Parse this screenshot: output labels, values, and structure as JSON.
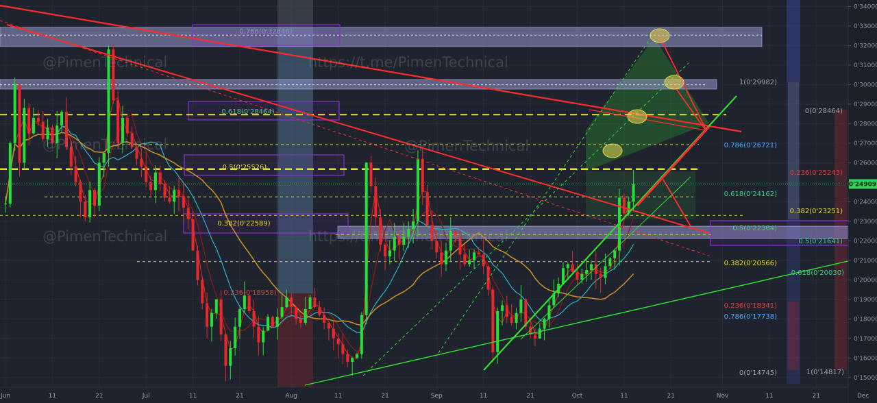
{
  "watermarks": [
    "@PimenTechnical",
    "https://t.me/PimenTechnical"
  ],
  "colors": {
    "background": "#1f232d",
    "up": "#26e03a",
    "down": "#e8282c",
    "trend_red": "#ff2d2d",
    "trend_green": "#2fe02f",
    "dashed_yellow": "#e8e030",
    "band": "#8b8fbc",
    "purple": "#8b30d6",
    "ma_orange": "#c88a2a",
    "ma_cyan": "#2bb5c8",
    "current": "#2fd35a"
  },
  "chart_data": {
    "type": "candlestick",
    "y_axis": {
      "ticks": [
        "0'34000",
        "0'33000",
        "0'32000",
        "0'31000",
        "0'30000",
        "0'29000",
        "0'28000",
        "0'27000",
        "0'26000",
        "0'25000",
        "0'24000",
        "0'23000",
        "0'22000",
        "0'21000",
        "0'20000",
        "0'19000",
        "0'18000",
        "0'17000",
        "0'16000",
        "0'15000"
      ],
      "range": [
        0.145,
        0.3412
      ]
    },
    "x_axis": {
      "ticks": [
        "Jun",
        "11",
        "21",
        "Jul",
        "11",
        "21",
        "Aug",
        "11",
        "21",
        "Sep",
        "11",
        "21",
        "Oct",
        "11",
        "21",
        "Nov",
        "11",
        "21",
        "Dec"
      ],
      "day_offsets": [
        0,
        10,
        20,
        30,
        40,
        50,
        61,
        71,
        81,
        92,
        102,
        112,
        122,
        132,
        142,
        153,
        163,
        173,
        183
      ]
    },
    "current_price": {
      "label": "0'24909",
      "value": 0.24909
    },
    "fib_labels": [
      {
        "text": "0.786(0'32646)",
        "price": 0.32646,
        "color": "#8c8fd0"
      },
      {
        "text": "0.618(0'28464)",
        "price": 0.28464,
        "color": "#40d080"
      },
      {
        "text": "0.5(0'25526)",
        "price": 0.25526,
        "color": "#e8d640"
      },
      {
        "text": "0.382(0'22589)",
        "price": 0.22589,
        "color": "#e8d640"
      },
      {
        "text": "0.236(0'18958)",
        "price": 0.18958,
        "color": "#e04040"
      },
      {
        "text": "1(0'29982)",
        "price": 0.29982,
        "color": "#9aa0ab"
      },
      {
        "text": "0.786(0'26721)",
        "price": 0.26721,
        "color": "#50a8ff"
      },
      {
        "text": "0.618(0'24162)",
        "price": 0.24162,
        "color": "#40d080"
      },
      {
        "text": "0.5(0'22364)",
        "price": 0.22364,
        "color": "#40d080"
      },
      {
        "text": "0.382(0'20566)",
        "price": 0.20566,
        "color": "#e8d640"
      },
      {
        "text": "0.236(0'18341)",
        "price": 0.18341,
        "color": "#e04040"
      },
      {
        "text": "0.786(0'17738)",
        "price": 0.17738,
        "color": "#50a8ff"
      },
      {
        "text": "0(0'14745)",
        "price": 0.14745,
        "color": "#9aa0ab"
      },
      {
        "text": "0(0'28464)",
        "price": 0.28464,
        "color": "#9aa0ab"
      },
      {
        "text": "0.236(0'25243)",
        "price": 0.25243,
        "color": "#e04040"
      },
      {
        "text": "0.382(0'23251)",
        "price": 0.23251,
        "color": "#e8d640"
      },
      {
        "text": "0.5(0'21641)",
        "price": 0.21641,
        "color": "#40d080"
      },
      {
        "text": "0.618(0'20030)",
        "price": 0.2003,
        "color": "#40d080"
      },
      {
        "text": "1(0'14817)",
        "price": 0.14817,
        "color": "#9aa0ab"
      }
    ],
    "candles_close": [
      0.239,
      0.27,
      0.3,
      0.26,
      0.288,
      0.275,
      0.283,
      0.281,
      0.272,
      0.278,
      0.27,
      0.279,
      0.286,
      0.268,
      0.258,
      0.25,
      0.24,
      0.232,
      0.246,
      0.238,
      0.26,
      0.265,
      0.318,
      0.292,
      0.27,
      0.283,
      0.275,
      0.268,
      0.262,
      0.258,
      0.25,
      0.246,
      0.255,
      0.249,
      0.242,
      0.24,
      0.246,
      0.243,
      0.237,
      0.231,
      0.215,
      0.2,
      0.188,
      0.176,
      0.183,
      0.19,
      0.172,
      0.156,
      0.165,
      0.176,
      0.185,
      0.192,
      0.184,
      0.176,
      0.168,
      0.174,
      0.181,
      0.176,
      0.181,
      0.186,
      0.191,
      0.186,
      0.18,
      0.178,
      0.185,
      0.191,
      0.186,
      0.182,
      0.178,
      0.175,
      0.17,
      0.167,
      0.162,
      0.158,
      0.16,
      0.162,
      0.182,
      0.26,
      0.248,
      0.232,
      0.218,
      0.212,
      0.215,
      0.222,
      0.218,
      0.222,
      0.226,
      0.23,
      0.262,
      0.245,
      0.228,
      0.22,
      0.214,
      0.208,
      0.215,
      0.225,
      0.222,
      0.213,
      0.208,
      0.21,
      0.214,
      0.213,
      0.207,
      0.195,
      0.163,
      0.184,
      0.187,
      0.181,
      0.178,
      0.183,
      0.19,
      0.176,
      0.172,
      0.17,
      0.175,
      0.18,
      0.187,
      0.193,
      0.198,
      0.206,
      0.208,
      0.204,
      0.2,
      0.203,
      0.205,
      0.208,
      0.203,
      0.201,
      0.207,
      0.211,
      0.215,
      0.242,
      0.234,
      0.24,
      0.249
    ]
  }
}
